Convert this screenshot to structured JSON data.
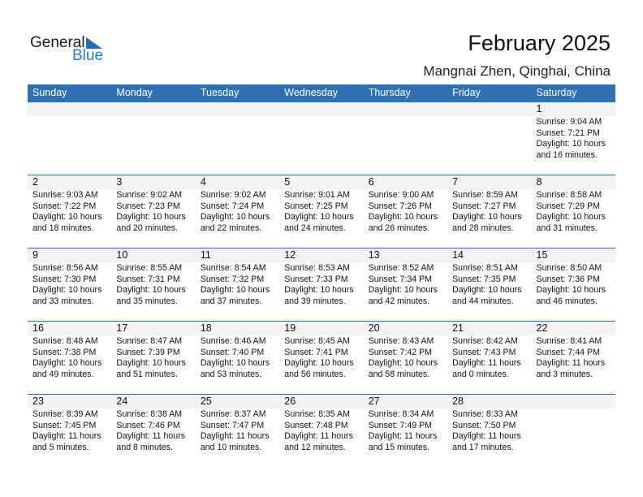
{
  "logo": {
    "general": "General",
    "blue": "Blue"
  },
  "title": "February 2025",
  "location": "Mangnai Zhen, Qinghai, China",
  "colors": {
    "header": "#2e70b1",
    "date_strip": "#f2f2f2",
    "logo_blue": "#1f7fc8"
  },
  "weekdays": [
    "Sunday",
    "Monday",
    "Tuesday",
    "Wednesday",
    "Thursday",
    "Friday",
    "Saturday"
  ],
  "weeks": [
    [
      null,
      null,
      null,
      null,
      null,
      null,
      {
        "day": "1",
        "sunrise": "Sunrise: 9:04 AM",
        "sunset": "Sunset: 7:21 PM",
        "daylight1": "Daylight: 10 hours",
        "daylight2": "and 16 minutes."
      }
    ],
    [
      {
        "day": "2",
        "sunrise": "Sunrise: 9:03 AM",
        "sunset": "Sunset: 7:22 PM",
        "daylight1": "Daylight: 10 hours",
        "daylight2": "and 18 minutes."
      },
      {
        "day": "3",
        "sunrise": "Sunrise: 9:02 AM",
        "sunset": "Sunset: 7:23 PM",
        "daylight1": "Daylight: 10 hours",
        "daylight2": "and 20 minutes."
      },
      {
        "day": "4",
        "sunrise": "Sunrise: 9:02 AM",
        "sunset": "Sunset: 7:24 PM",
        "daylight1": "Daylight: 10 hours",
        "daylight2": "and 22 minutes."
      },
      {
        "day": "5",
        "sunrise": "Sunrise: 9:01 AM",
        "sunset": "Sunset: 7:25 PM",
        "daylight1": "Daylight: 10 hours",
        "daylight2": "and 24 minutes."
      },
      {
        "day": "6",
        "sunrise": "Sunrise: 9:00 AM",
        "sunset": "Sunset: 7:26 PM",
        "daylight1": "Daylight: 10 hours",
        "daylight2": "and 26 minutes."
      },
      {
        "day": "7",
        "sunrise": "Sunrise: 8:59 AM",
        "sunset": "Sunset: 7:27 PM",
        "daylight1": "Daylight: 10 hours",
        "daylight2": "and 28 minutes."
      },
      {
        "day": "8",
        "sunrise": "Sunrise: 8:58 AM",
        "sunset": "Sunset: 7:29 PM",
        "daylight1": "Daylight: 10 hours",
        "daylight2": "and 31 minutes."
      }
    ],
    [
      {
        "day": "9",
        "sunrise": "Sunrise: 8:56 AM",
        "sunset": "Sunset: 7:30 PM",
        "daylight1": "Daylight: 10 hours",
        "daylight2": "and 33 minutes."
      },
      {
        "day": "10",
        "sunrise": "Sunrise: 8:55 AM",
        "sunset": "Sunset: 7:31 PM",
        "daylight1": "Daylight: 10 hours",
        "daylight2": "and 35 minutes."
      },
      {
        "day": "11",
        "sunrise": "Sunrise: 8:54 AM",
        "sunset": "Sunset: 7:32 PM",
        "daylight1": "Daylight: 10 hours",
        "daylight2": "and 37 minutes."
      },
      {
        "day": "12",
        "sunrise": "Sunrise: 8:53 AM",
        "sunset": "Sunset: 7:33 PM",
        "daylight1": "Daylight: 10 hours",
        "daylight2": "and 39 minutes."
      },
      {
        "day": "13",
        "sunrise": "Sunrise: 8:52 AM",
        "sunset": "Sunset: 7:34 PM",
        "daylight1": "Daylight: 10 hours",
        "daylight2": "and 42 minutes."
      },
      {
        "day": "14",
        "sunrise": "Sunrise: 8:51 AM",
        "sunset": "Sunset: 7:35 PM",
        "daylight1": "Daylight: 10 hours",
        "daylight2": "and 44 minutes."
      },
      {
        "day": "15",
        "sunrise": "Sunrise: 8:50 AM",
        "sunset": "Sunset: 7:36 PM",
        "daylight1": "Daylight: 10 hours",
        "daylight2": "and 46 minutes."
      }
    ],
    [
      {
        "day": "16",
        "sunrise": "Sunrise: 8:48 AM",
        "sunset": "Sunset: 7:38 PM",
        "daylight1": "Daylight: 10 hours",
        "daylight2": "and 49 minutes."
      },
      {
        "day": "17",
        "sunrise": "Sunrise: 8:47 AM",
        "sunset": "Sunset: 7:39 PM",
        "daylight1": "Daylight: 10 hours",
        "daylight2": "and 51 minutes."
      },
      {
        "day": "18",
        "sunrise": "Sunrise: 8:46 AM",
        "sunset": "Sunset: 7:40 PM",
        "daylight1": "Daylight: 10 hours",
        "daylight2": "and 53 minutes."
      },
      {
        "day": "19",
        "sunrise": "Sunrise: 8:45 AM",
        "sunset": "Sunset: 7:41 PM",
        "daylight1": "Daylight: 10 hours",
        "daylight2": "and 56 minutes."
      },
      {
        "day": "20",
        "sunrise": "Sunrise: 8:43 AM",
        "sunset": "Sunset: 7:42 PM",
        "daylight1": "Daylight: 10 hours",
        "daylight2": "and 58 minutes."
      },
      {
        "day": "21",
        "sunrise": "Sunrise: 8:42 AM",
        "sunset": "Sunset: 7:43 PM",
        "daylight1": "Daylight: 11 hours",
        "daylight2": "and 0 minutes."
      },
      {
        "day": "22",
        "sunrise": "Sunrise: 8:41 AM",
        "sunset": "Sunset: 7:44 PM",
        "daylight1": "Daylight: 11 hours",
        "daylight2": "and 3 minutes."
      }
    ],
    [
      {
        "day": "23",
        "sunrise": "Sunrise: 8:39 AM",
        "sunset": "Sunset: 7:45 PM",
        "daylight1": "Daylight: 11 hours",
        "daylight2": "and 5 minutes."
      },
      {
        "day": "24",
        "sunrise": "Sunrise: 8:38 AM",
        "sunset": "Sunset: 7:46 PM",
        "daylight1": "Daylight: 11 hours",
        "daylight2": "and 8 minutes."
      },
      {
        "day": "25",
        "sunrise": "Sunrise: 8:37 AM",
        "sunset": "Sunset: 7:47 PM",
        "daylight1": "Daylight: 11 hours",
        "daylight2": "and 10 minutes."
      },
      {
        "day": "26",
        "sunrise": "Sunrise: 8:35 AM",
        "sunset": "Sunset: 7:48 PM",
        "daylight1": "Daylight: 11 hours",
        "daylight2": "and 12 minutes."
      },
      {
        "day": "27",
        "sunrise": "Sunrise: 8:34 AM",
        "sunset": "Sunset: 7:49 PM",
        "daylight1": "Daylight: 11 hours",
        "daylight2": "and 15 minutes."
      },
      {
        "day": "28",
        "sunrise": "Sunrise: 8:33 AM",
        "sunset": "Sunset: 7:50 PM",
        "daylight1": "Daylight: 11 hours",
        "daylight2": "and 17 minutes."
      },
      null
    ]
  ]
}
